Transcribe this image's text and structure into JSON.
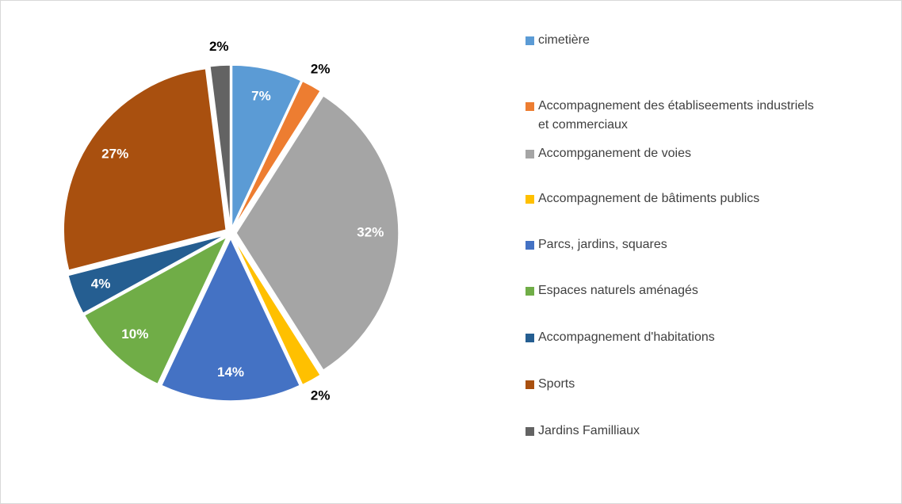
{
  "chart_data": {
    "type": "pie",
    "categories": [
      "cimetière",
      "Accompagnement des établiseements industriels et commerciaux",
      "Accompganement de voies",
      "Accompagnement de bâtiments publics",
      "Parcs, jardins, squares",
      "Espaces naturels aménagés",
      "Accompagnement d'habitations",
      "Sports",
      "Jardins Familliaux"
    ],
    "values": [
      7,
      2,
      32,
      2,
      14,
      10,
      4,
      27,
      2
    ],
    "value_labels": [
      "7%",
      "2%",
      "32%",
      "2%",
      "14%",
      "10%",
      "4%",
      "27%",
      "2%"
    ],
    "colors": [
      "#5b9bd5",
      "#ed7d31",
      "#a5a5a5",
      "#ffc000",
      "#4472c4",
      "#70ad47",
      "#255e91",
      "#a9500f",
      "#636363"
    ],
    "legend": "right"
  }
}
